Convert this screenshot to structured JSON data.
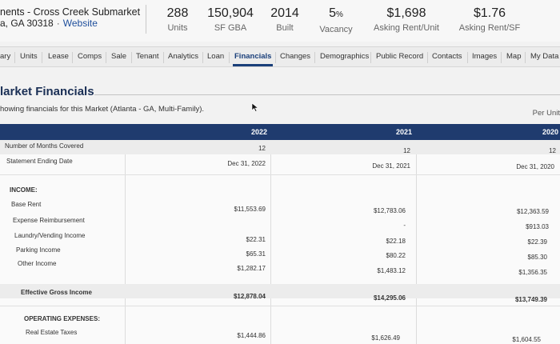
{
  "property": {
    "name": "nents - Cross Creek Submarket",
    "address": "a, GA 30318",
    "separator": "·",
    "website": "Website"
  },
  "stats": [
    {
      "value": "288",
      "label": "Units"
    },
    {
      "value": "150,904",
      "label": "SF GBA"
    },
    {
      "value": "2014",
      "label": "Built"
    },
    {
      "value": "5",
      "unit": "%",
      "label": "Vacancy"
    },
    {
      "value": "$1,698",
      "label": "Asking Rent/Unit"
    },
    {
      "value": "$1.76",
      "label": "Asking Rent/SF"
    }
  ],
  "tabs": [
    "ary",
    "Units",
    "Lease",
    "Comps",
    "Sale",
    "Tenant",
    "Analytics",
    "Loan",
    "Financials",
    "Changes",
    "Demographics",
    "Public Record",
    "Contacts",
    "Images",
    "Map",
    "My Data"
  ],
  "active_tab": "Financials",
  "section": {
    "title": "Market Financials",
    "title_visible": "larket Financials",
    "description": "Showing financials for this Market (Atlanta - GA, Multi-Family).",
    "description_visible": "howing financials for this Market (Atlanta - GA, Multi-Family).",
    "per_unit": "Per Unit"
  },
  "table": {
    "years": [
      "2022",
      "2021",
      "2020"
    ],
    "rows": {
      "months": {
        "label": "Number of Months Covered",
        "values": [
          "12",
          "12",
          "12"
        ]
      },
      "ending": {
        "label": "Statement Ending Date",
        "values": [
          "Dec 31, 2022",
          "Dec 31, 2021",
          "Dec 31, 2020"
        ]
      },
      "income_header": {
        "label": "INCOME:"
      },
      "base_rent": {
        "label": "Base Rent",
        "values": [
          "$11,553.69",
          "$12,783.06",
          "$12,363.59"
        ]
      },
      "expense_reimb": {
        "label": "Expense Reimbursement",
        "values": [
          "",
          "-",
          "$913.03"
        ]
      },
      "laundry": {
        "label": "Laundry/Vending Income",
        "values": [
          "$22.31",
          "$22.18",
          "$22.39"
        ]
      },
      "parking": {
        "label": "Parking Income",
        "values": [
          "$65.31",
          "$80.22",
          "$85.30"
        ]
      },
      "other": {
        "label": "Other Income",
        "values": [
          "$1,282.17",
          "$1,483.12",
          "$1,356.35"
        ]
      },
      "egi": {
        "label": "Effective Gross Income",
        "values": [
          "$12,878.04",
          "$14,295.06",
          "$13,749.39"
        ]
      },
      "opex_header": {
        "label": "OPERATING EXPENSES:"
      },
      "re_taxes": {
        "label": "Real Estate Taxes",
        "values": [
          "$1,444.86",
          "$1,626.49",
          "$1,604.55"
        ]
      }
    }
  },
  "colors": {
    "accent": "#1f3b6e",
    "link": "#1f4f9c"
  }
}
